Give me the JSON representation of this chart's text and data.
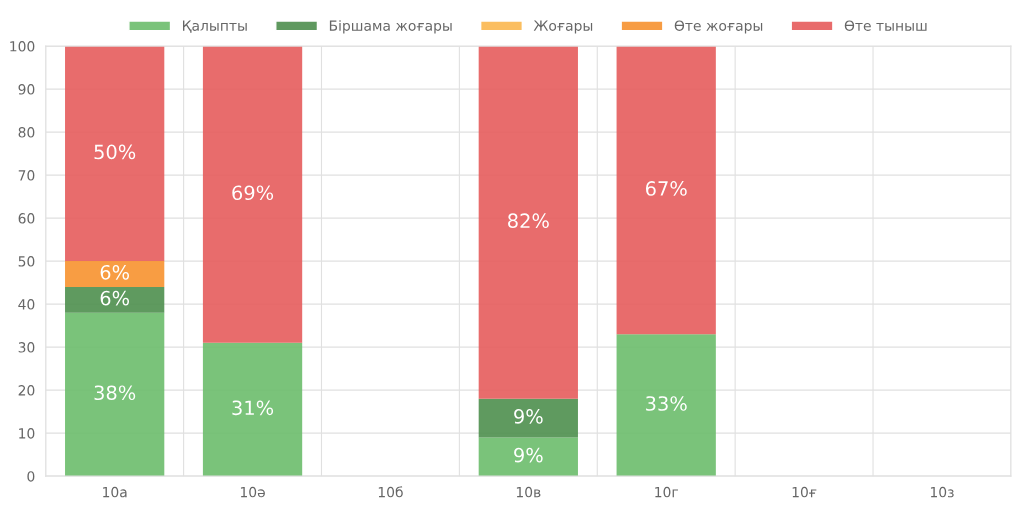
{
  "chart_data": {
    "type": "bar",
    "stacked": true,
    "categories": [
      "10а",
      "10ә",
      "10б",
      "10в",
      "10г",
      "10ғ",
      "10з"
    ],
    "series": [
      {
        "name": "Қалыпты",
        "color": "#6cbd6c",
        "values": [
          38,
          31,
          null,
          9,
          33,
          null,
          null
        ],
        "value_labels": [
          "38%",
          "31%",
          null,
          "9%",
          "33%",
          null,
          null
        ]
      },
      {
        "name": "Біршама жоғары",
        "color": "#4e8f4e",
        "values": [
          6,
          null,
          null,
          9,
          null,
          null,
          null
        ],
        "value_labels": [
          "6%",
          null,
          null,
          "9%",
          null,
          null,
          null
        ]
      },
      {
        "name": "Жоғары",
        "color": "#fbb84f",
        "values": [
          null,
          null,
          null,
          null,
          null,
          null,
          null
        ]
      },
      {
        "name": "Өте жоғары",
        "color": "#f7922f",
        "values": [
          6,
          null,
          null,
          null,
          null,
          null,
          null
        ],
        "value_labels": [
          "6%",
          null,
          null,
          null,
          null,
          null,
          null
        ]
      },
      {
        "name": "Өте тыныш",
        "color": "#e65c5c",
        "values": [
          50,
          69,
          null,
          82,
          67,
          null,
          null
        ],
        "value_labels": [
          "50%",
          "69%",
          null,
          "82%",
          "67%",
          null,
          null
        ]
      }
    ],
    "ylim": [
      0,
      100
    ],
    "yticks": [
      0,
      10,
      20,
      30,
      40,
      50,
      60,
      70,
      80,
      90,
      100
    ],
    "grid": true,
    "legend": "top"
  }
}
